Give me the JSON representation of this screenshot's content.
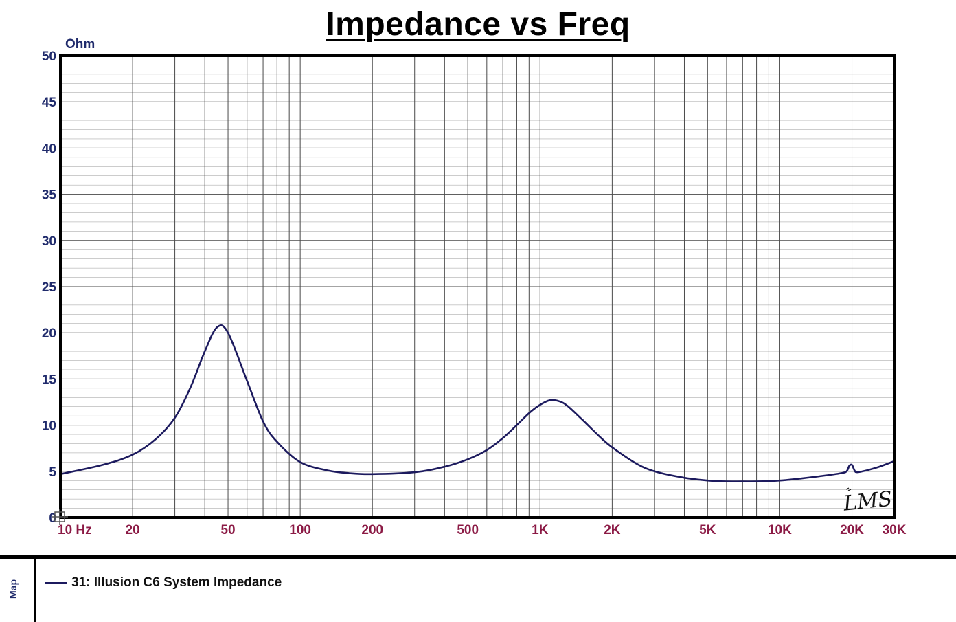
{
  "chart_data": {
    "type": "line",
    "title": "Impedance vs Freq",
    "ylabel": "Ohm",
    "xscale": "log",
    "xlim": [
      10,
      30000
    ],
    "ylim": [
      0,
      50
    ],
    "grid": true,
    "y_ticks": [
      0,
      5,
      10,
      15,
      20,
      25,
      30,
      35,
      40,
      45,
      50
    ],
    "y_tick_labels": [
      "0",
      "5",
      "10",
      "15",
      "20",
      "25",
      "30",
      "35",
      "40",
      "45",
      "50"
    ],
    "x_ticks": [
      10,
      20,
      50,
      100,
      200,
      500,
      1000,
      2000,
      5000,
      10000,
      20000,
      30000
    ],
    "x_tick_labels": [
      "10 Hz",
      "20",
      "50",
      "100",
      "200",
      "500",
      "1K",
      "2K",
      "5K",
      "10K",
      "20K",
      "30K"
    ],
    "series": [
      {
        "name": "31: Illusion C6 System Impedance",
        "color": "#1c1a5e",
        "x": [
          10,
          15,
          20,
          25,
          30,
          35,
          40,
          45,
          50,
          60,
          70,
          80,
          100,
          130,
          160,
          200,
          300,
          400,
          500,
          600,
          700,
          800,
          900,
          1000,
          1100,
          1200,
          1300,
          1500,
          1800,
          2000,
          2500,
          3000,
          4000,
          5000,
          6000,
          7000,
          8000,
          10000,
          12000,
          15000,
          18000,
          19000,
          19500,
          20000,
          20500,
          21000,
          23000,
          26000,
          30000
        ],
        "y": [
          4.7,
          5.7,
          6.8,
          8.5,
          10.8,
          14.2,
          18.0,
          20.6,
          20.0,
          14.8,
          10.4,
          8.2,
          6.0,
          5.1,
          4.8,
          4.7,
          4.9,
          5.5,
          6.3,
          7.3,
          8.6,
          10.0,
          11.3,
          12.2,
          12.7,
          12.6,
          12.1,
          10.6,
          8.6,
          7.6,
          5.9,
          5.0,
          4.3,
          4.0,
          3.9,
          3.9,
          3.9,
          4.0,
          4.2,
          4.5,
          4.8,
          5.0,
          5.6,
          5.7,
          5.1,
          4.9,
          5.1,
          5.5,
          6.1
        ]
      }
    ]
  },
  "legend": {
    "panel_label": "Map",
    "entry": "31: Illusion C6 System Impedance"
  },
  "watermark_text": "LMS",
  "colors": {
    "curve": "#1c1a5e",
    "y_tick_text": "#1f2a6b",
    "x_tick_text": "#8b1a45",
    "grid": "#4a4a4a",
    "frame": "#000000"
  }
}
